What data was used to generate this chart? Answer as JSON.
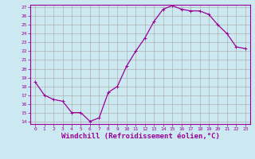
{
  "x": [
    0,
    1,
    2,
    3,
    4,
    5,
    6,
    7,
    8,
    9,
    10,
    11,
    12,
    13,
    14,
    15,
    16,
    17,
    18,
    19,
    20,
    21,
    22,
    23
  ],
  "y": [
    18.5,
    17.0,
    16.5,
    16.3,
    15.0,
    15.0,
    14.0,
    14.4,
    17.3,
    18.0,
    20.3,
    22.0,
    23.5,
    25.4,
    26.8,
    27.2,
    26.8,
    26.6,
    26.6,
    26.2,
    25.0,
    24.0,
    22.5,
    22.3
  ],
  "color": "#990099",
  "bg_color": "#cce8f0",
  "grid_color": "#b0b0b0",
  "xlabel": "Windchill (Refroidissement éolien,°C)",
  "ylim": [
    14,
    27
  ],
  "xlim": [
    -0.5,
    23.5
  ],
  "yticks": [
    14,
    15,
    16,
    17,
    18,
    19,
    20,
    21,
    22,
    23,
    24,
    25,
    26,
    27
  ],
  "xticks": [
    0,
    1,
    2,
    3,
    4,
    5,
    6,
    7,
    8,
    9,
    10,
    11,
    12,
    13,
    14,
    15,
    16,
    17,
    18,
    19,
    20,
    21,
    22,
    23
  ],
  "tick_fontsize": 4.5,
  "xlabel_fontsize": 6.5,
  "marker": "+",
  "marker_size": 3.5,
  "linewidth": 0.9
}
